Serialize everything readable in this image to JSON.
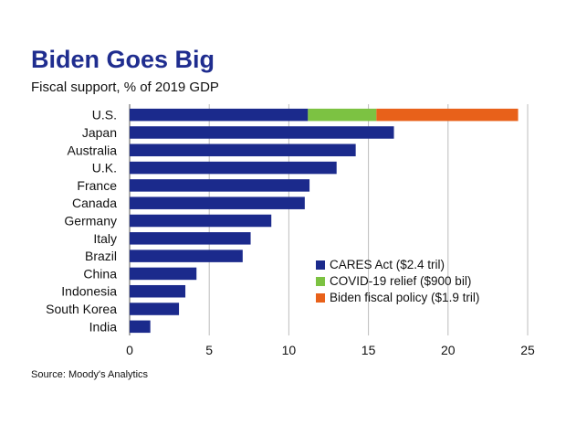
{
  "chart_data": {
    "type": "bar",
    "orientation": "horizontal",
    "stacked": true,
    "title": "Biden Goes Big",
    "subtitle": "Fiscal support, % of 2019 GDP",
    "source": "Source: Moody's Analytics",
    "xlabel": "",
    "ylabel": "",
    "xlim": [
      0,
      25
    ],
    "x_ticks": [
      "0",
      "5",
      "10",
      "15",
      "20",
      "25"
    ],
    "grid": "vertical",
    "legend_position": "bottom-right",
    "categories": [
      "U.S.",
      "Japan",
      "Australia",
      "U.K.",
      "France",
      "Canada",
      "Germany",
      "Italy",
      "Brazil",
      "China",
      "Indonesia",
      "South Korea",
      "India"
    ],
    "series": [
      {
        "name": "CARES Act ($2.4 tril)",
        "color": "#1b2a8c",
        "values": [
          11.2,
          16.6,
          14.2,
          13.0,
          11.3,
          11.0,
          8.9,
          7.6,
          7.1,
          4.2,
          3.5,
          3.1,
          1.3
        ]
      },
      {
        "name": "COVID-19 relief ($900 bil)",
        "color": "#7cc242",
        "values": [
          4.3,
          0,
          0,
          0,
          0,
          0,
          0,
          0,
          0,
          0,
          0,
          0,
          0
        ]
      },
      {
        "name": "Biden fiscal policy ($1.9 tril)",
        "color": "#e8611a",
        "values": [
          8.9,
          0,
          0,
          0,
          0,
          0,
          0,
          0,
          0,
          0,
          0,
          0,
          0
        ]
      }
    ]
  }
}
